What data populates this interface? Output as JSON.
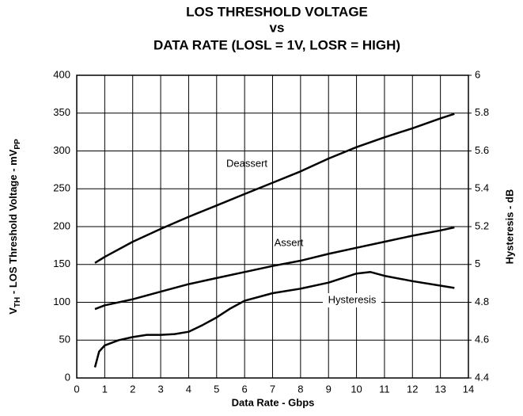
{
  "chart_data": {
    "type": "line",
    "title": [
      "LOS THRESHOLD VOLTAGE",
      "vs",
      "DATA RATE (LOSL = 1V, LOSR = HIGH)"
    ],
    "xlabel": "Data Rate - Gbps",
    "ylabel": [
      "V",
      "TH",
      " - LOS Threshold Voltage - mV",
      "PP"
    ],
    "y2label": "Hysteresis - dB",
    "xlim": [
      0,
      14
    ],
    "xticks": [
      0,
      1,
      2,
      3,
      4,
      5,
      6,
      7,
      8,
      9,
      10,
      11,
      12,
      13,
      14
    ],
    "ylim": [
      0,
      400
    ],
    "yticks": [
      0,
      50,
      100,
      150,
      200,
      250,
      300,
      350,
      400
    ],
    "y2lim": [
      4.4,
      6
    ],
    "y2ticks": [
      4.4,
      4.6,
      4.8,
      5,
      5.2,
      5.4,
      5.6,
      5.8,
      6
    ],
    "grid": true,
    "series": [
      {
        "name": "Deassert",
        "color": "#000000",
        "x": [
          0.65,
          1,
          2,
          3,
          4,
          5,
          6,
          7,
          8,
          9,
          10,
          11,
          12,
          13,
          13.5
        ],
        "values": [
          152,
          160,
          180,
          197,
          213,
          228,
          243,
          258,
          273,
          290,
          305,
          318,
          330,
          343,
          349
        ]
      },
      {
        "name": "Assert",
        "color": "#000000",
        "x": [
          0.65,
          1,
          2,
          3,
          4,
          5,
          6,
          7,
          8,
          9,
          10,
          11,
          12,
          13,
          13.5
        ],
        "values": [
          91,
          96,
          104,
          114,
          124,
          132,
          140,
          148,
          155,
          164,
          172,
          180,
          188,
          195,
          199
        ]
      },
      {
        "name": "Hysteresis",
        "color": "#000000",
        "axis": "y2",
        "x": [
          0.65,
          0.8,
          1,
          1.5,
          2,
          2.5,
          3,
          3.5,
          4,
          4.5,
          5,
          5.5,
          6,
          7,
          8,
          9,
          10,
          10.5,
          11,
          12,
          13,
          13.5
        ],
        "values": [
          4.456,
          4.54,
          4.572,
          4.6,
          4.616,
          4.628,
          4.628,
          4.632,
          4.644,
          4.68,
          4.72,
          4.768,
          4.808,
          4.848,
          4.872,
          4.904,
          4.952,
          4.96,
          4.94,
          4.912,
          4.888,
          4.876
        ]
      }
    ]
  }
}
